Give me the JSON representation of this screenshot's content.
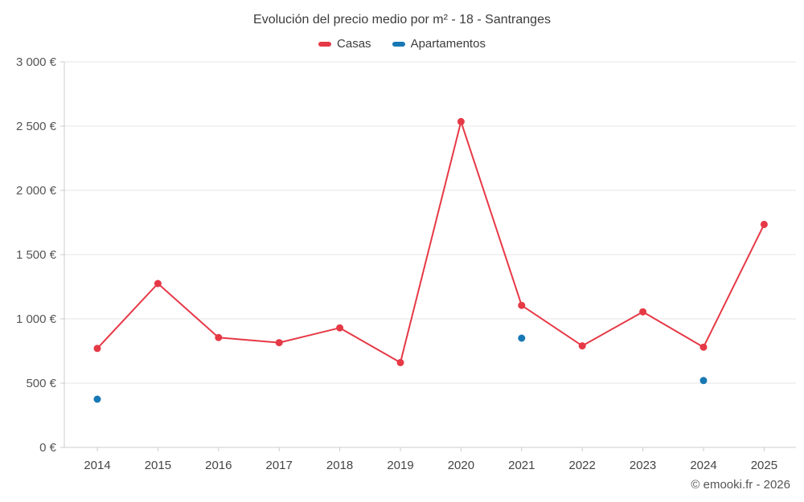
{
  "header": {
    "title": "Evolución del precio medio por m² - 18 - Santranges"
  },
  "footer": {
    "credit": "© emooki.fr - 2026"
  },
  "colors": {
    "casas": "#e63946",
    "apartamentos": "#1878b4",
    "grid": "#e6e6e6",
    "axis": "#cccccc",
    "tick_text": "#555555"
  },
  "chart_data": {
    "type": "line",
    "title": "Evolución del precio medio por m² - 18 - Santranges",
    "x": [
      2014,
      2015,
      2016,
      2017,
      2018,
      2019,
      2020,
      2021,
      2022,
      2023,
      2024,
      2025
    ],
    "series": [
      {
        "name": "Casas",
        "color": "#e63946",
        "values": [
          770,
          1275,
          855,
          815,
          930,
          660,
          2535,
          1105,
          790,
          1055,
          780,
          1735
        ]
      },
      {
        "name": "Apartamentos",
        "color": "#1878b4",
        "values": [
          375,
          null,
          null,
          null,
          null,
          null,
          null,
          850,
          null,
          null,
          520,
          null
        ]
      }
    ],
    "xlabel": "",
    "ylabel": "",
    "ylim": [
      0,
      3000
    ],
    "ytick_step": 500,
    "ytick_labels": [
      "0 €",
      "500 €",
      "1 000 €",
      "1 500 €",
      "2 000 €",
      "2 500 €",
      "3 000 €"
    ],
    "grid": true,
    "legend_position": "top"
  }
}
